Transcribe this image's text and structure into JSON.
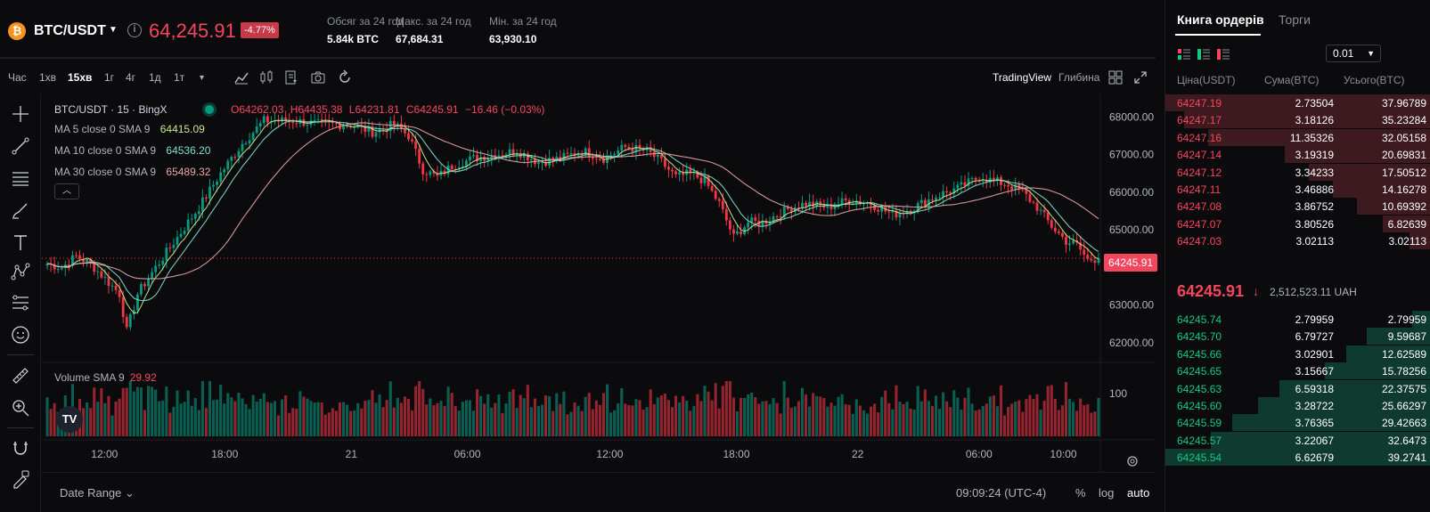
{
  "header": {
    "coin_glyph": "₿",
    "pair": "BTC/USDT",
    "info_glyph": "i",
    "price": "64,245.91",
    "change_pct": "-4.77%",
    "stats": [
      {
        "label": "Обсяг за 24 год",
        "value": "5.84k BTC"
      },
      {
        "label": "Макс. за 24 год",
        "value": "67,684.31"
      },
      {
        "label": "Мін. за 24 год",
        "value": "63,930.10"
      }
    ]
  },
  "toolbar": {
    "timeframes": [
      "Час",
      "1хв",
      "15хв",
      "1г",
      "4г",
      "1д",
      "1т"
    ],
    "active_timeframe": "15хв",
    "more_glyph": "▾",
    "tradingview_label": "TradingView",
    "depth_label": "Глибина"
  },
  "chart_legend": {
    "title": "BTC/USDT · 15 · BingX",
    "ohlc": {
      "open": "O64262.03",
      "high": "H64435.38",
      "low": "L64231.81",
      "close": "C64245.91",
      "change": "−16.46 (−0.03%)"
    },
    "ma": [
      {
        "name": "MA 5 close 0 SMA 9",
        "value": "64415.09",
        "color": "#c6e48b"
      },
      {
        "name": "MA 10 close 0 SMA 9",
        "value": "64536.20",
        "color": "#7fe0c8"
      },
      {
        "name": "MA 30 close 0 SMA 9",
        "value": "65489.32",
        "color": "#e8a5a5"
      }
    ],
    "collapse_glyph": "︿",
    "volume_name": "Volume SMA 9",
    "volume_value": "29.92",
    "last_price_tag": "64245.91",
    "tv_logo": "TV"
  },
  "chart_bottom": {
    "date_range": "Date Range ⌄",
    "clock": "09:09:24 (UTC-4)",
    "pct": "%",
    "log": "log",
    "auto": "auto"
  },
  "chart_data": {
    "type": "candlestick",
    "price_ticks": [
      "68000.00",
      "67000.00",
      "66000.00",
      "65000.00",
      "64000.00",
      "63000.00",
      "62000.00"
    ],
    "volume_ticks": [
      "100"
    ],
    "time_ticks": [
      "12:00",
      "18:00",
      "21",
      "06:00",
      "12:00",
      "18:00",
      "22",
      "06:00",
      "10:00"
    ],
    "close_anchors": [
      [
        0,
        64100
      ],
      [
        4,
        64000
      ],
      [
        8,
        64300
      ],
      [
        12,
        64100
      ],
      [
        16,
        63700
      ],
      [
        20,
        63300
      ],
      [
        22,
        62300
      ],
      [
        25,
        63300
      ],
      [
        30,
        64000
      ],
      [
        36,
        64800
      ],
      [
        42,
        65600
      ],
      [
        48,
        66500
      ],
      [
        54,
        67300
      ],
      [
        60,
        67900
      ],
      [
        68,
        67900
      ],
      [
        76,
        67800
      ],
      [
        84,
        67800
      ],
      [
        90,
        67600
      ],
      [
        96,
        67800
      ],
      [
        100,
        67500
      ],
      [
        104,
        66600
      ],
      [
        108,
        66400
      ],
      [
        112,
        66700
      ],
      [
        118,
        66900
      ],
      [
        124,
        67000
      ],
      [
        130,
        67100
      ],
      [
        136,
        66800
      ],
      [
        142,
        66900
      ],
      [
        148,
        67100
      ],
      [
        154,
        66900
      ],
      [
        160,
        67200
      ],
      [
        166,
        67100
      ],
      [
        170,
        66800
      ],
      [
        174,
        66400
      ],
      [
        178,
        66500
      ],
      [
        182,
        66300
      ],
      [
        186,
        65700
      ],
      [
        190,
        64800
      ],
      [
        194,
        65200
      ],
      [
        198,
        65200
      ],
      [
        202,
        65400
      ],
      [
        206,
        65600
      ],
      [
        210,
        65700
      ],
      [
        216,
        65600
      ],
      [
        222,
        65800
      ],
      [
        228,
        65700
      ],
      [
        234,
        65400
      ],
      [
        240,
        65600
      ],
      [
        246,
        65900
      ],
      [
        252,
        66100
      ],
      [
        258,
        66400
      ],
      [
        262,
        66300
      ],
      [
        266,
        66200
      ],
      [
        270,
        66000
      ],
      [
        274,
        65600
      ],
      [
        278,
        65100
      ],
      [
        282,
        64700
      ],
      [
        285,
        64600
      ],
      [
        288,
        64200
      ],
      [
        291,
        64246
      ]
    ],
    "ma_periods": [
      5,
      10,
      30
    ],
    "ma_colors": [
      "#c6e48b",
      "#7fe0c8",
      "#e8a5a5"
    ],
    "up_color": "#089981",
    "down_color": "#f23645",
    "ylim": [
      61500,
      68600
    ],
    "last_price": 64245.91
  },
  "orderbook": {
    "tabs": [
      "Книга ордерів",
      "Торги"
    ],
    "precision": "0.01",
    "precision_glyph": "▼",
    "headers": [
      "Ціна(USDT)",
      "Сума(BTC)",
      "Усього(BTC)"
    ],
    "asks": [
      {
        "price": "64247.19",
        "amount": "2.73504",
        "total": "37.96789",
        "depth": 1.0
      },
      {
        "price": "64247.17",
        "amount": "3.18126",
        "total": "35.23284",
        "depth": 0.93
      },
      {
        "price": "64247.16",
        "amount": "11.35326",
        "total": "32.05158",
        "depth": 0.84
      },
      {
        "price": "64247.14",
        "amount": "3.19319",
        "total": "20.69831",
        "depth": 0.55
      },
      {
        "price": "64247.12",
        "amount": "3.34233",
        "total": "17.50512",
        "depth": 0.46
      },
      {
        "price": "64247.11",
        "amount": "3.46886",
        "total": "14.16278",
        "depth": 0.37
      },
      {
        "price": "64247.08",
        "amount": "3.86752",
        "total": "10.69392",
        "depth": 0.28
      },
      {
        "price": "64247.07",
        "amount": "3.80526",
        "total": "6.82639",
        "depth": 0.18
      },
      {
        "price": "64247.03",
        "amount": "3.02113",
        "total": "3.02113",
        "depth": 0.08
      }
    ],
    "mid_price": "64245.91",
    "mid_arrow": "↓",
    "mid_fiat": "2,512,523.11 UAH",
    "bids": [
      {
        "price": "64245.74",
        "amount": "2.79959",
        "total": "2.79959",
        "depth": 0.07
      },
      {
        "price": "64245.70",
        "amount": "6.79727",
        "total": "9.59687",
        "depth": 0.24
      },
      {
        "price": "64245.66",
        "amount": "3.02901",
        "total": "12.62589",
        "depth": 0.32
      },
      {
        "price": "64245.65",
        "amount": "3.15667",
        "total": "15.78256",
        "depth": 0.4
      },
      {
        "price": "64245.63",
        "amount": "6.59318",
        "total": "22.37575",
        "depth": 0.57
      },
      {
        "price": "64245.60",
        "amount": "3.28722",
        "total": "25.66297",
        "depth": 0.65
      },
      {
        "price": "64245.59",
        "amount": "3.76365",
        "total": "29.42663",
        "depth": 0.75
      },
      {
        "price": "64245.57",
        "amount": "3.22067",
        "total": "32.6473",
        "depth": 0.83
      },
      {
        "price": "64245.54",
        "amount": "6.62679",
        "total": "39.2741",
        "depth": 1.0
      }
    ]
  }
}
